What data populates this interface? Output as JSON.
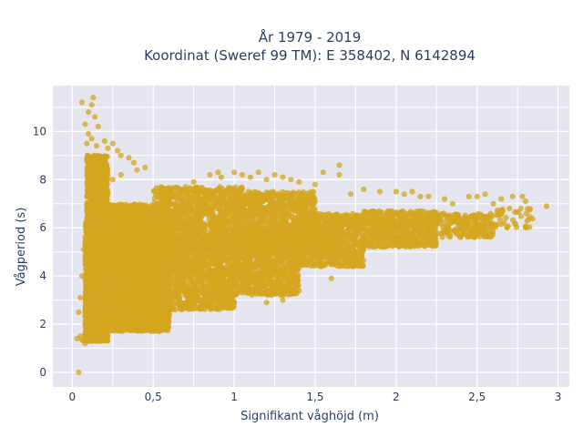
{
  "chart_data": {
    "type": "scatter",
    "title_line1": "År 1979 - 2019",
    "title_line2": "Koordinat (Sweref 99 TM): E 358402, N 6142894",
    "xlabel": "Signifikant våghöjd (m)",
    "ylabel": "Vågperiod (s)",
    "xlim": [
      -0.12,
      3.07
    ],
    "ylim": [
      -0.6,
      11.9
    ],
    "x_ticks": [
      0,
      0.5,
      1,
      1.5,
      2,
      2.5,
      3
    ],
    "x_tick_labels": [
      "0",
      "0,5",
      "1",
      "1,5",
      "2",
      "2,5",
      "3"
    ],
    "y_ticks": [
      0,
      2,
      4,
      6,
      8,
      10
    ],
    "y_tick_labels": [
      "0",
      "2",
      "4",
      "6",
      "8",
      "10"
    ],
    "grid": true,
    "marker_color": "#d4a51f",
    "background_color": "#e5e5f0",
    "series": [
      {
        "points": [
          [
            0.04,
            0.0
          ],
          [
            0.03,
            1.4
          ],
          [
            0.05,
            1.5
          ],
          [
            0.06,
            1.35
          ],
          [
            0.07,
            1.3
          ],
          [
            0.08,
            1.2
          ],
          [
            0.1,
            1.3
          ],
          [
            0.12,
            1.4
          ],
          [
            0.06,
            11.2
          ],
          [
            0.13,
            11.4
          ],
          [
            0.12,
            11.1
          ],
          [
            0.1,
            10.8
          ],
          [
            0.14,
            10.6
          ],
          [
            0.08,
            10.3
          ],
          [
            0.16,
            10.2
          ],
          [
            0.1,
            9.9
          ],
          [
            0.09,
            9.5
          ],
          [
            0.12,
            9.7
          ],
          [
            0.15,
            9.4
          ],
          [
            0.2,
            9.6
          ],
          [
            0.22,
            9.3
          ],
          [
            0.25,
            9.5
          ],
          [
            0.28,
            9.2
          ],
          [
            0.3,
            9.0
          ],
          [
            0.35,
            8.9
          ],
          [
            0.38,
            8.7
          ],
          [
            0.4,
            8.4
          ],
          [
            0.45,
            8.5
          ],
          [
            0.2,
            8.5
          ],
          [
            0.25,
            8.0
          ],
          [
            0.3,
            8.2
          ],
          [
            0.55,
            7.7
          ],
          [
            0.6,
            7.6
          ],
          [
            0.75,
            7.9
          ],
          [
            0.85,
            8.2
          ],
          [
            0.9,
            8.3
          ],
          [
            0.92,
            8.1
          ],
          [
            1.0,
            8.3
          ],
          [
            1.05,
            8.2
          ],
          [
            1.1,
            8.1
          ],
          [
            1.15,
            8.3
          ],
          [
            1.2,
            8.0
          ],
          [
            1.25,
            8.2
          ],
          [
            1.3,
            8.1
          ],
          [
            1.35,
            8.0
          ],
          [
            1.4,
            7.9
          ],
          [
            1.5,
            7.8
          ],
          [
            1.55,
            8.3
          ],
          [
            1.65,
            8.6
          ],
          [
            1.65,
            8.2
          ],
          [
            1.72,
            7.4
          ],
          [
            1.8,
            7.6
          ],
          [
            1.9,
            7.5
          ],
          [
            2.0,
            7.5
          ],
          [
            2.05,
            7.4
          ],
          [
            2.1,
            7.5
          ],
          [
            2.15,
            7.3
          ],
          [
            2.2,
            7.3
          ],
          [
            2.3,
            7.2
          ],
          [
            2.35,
            7.0
          ],
          [
            2.45,
            7.3
          ],
          [
            2.5,
            7.3
          ],
          [
            2.55,
            7.4
          ],
          [
            2.6,
            7.0
          ],
          [
            2.65,
            7.2
          ],
          [
            2.7,
            6.8
          ],
          [
            2.72,
            7.3
          ],
          [
            2.78,
            7.3
          ],
          [
            2.8,
            7.1
          ],
          [
            2.93,
            6.9
          ],
          [
            1.45,
            4.6
          ],
          [
            1.5,
            4.8
          ],
          [
            1.6,
            5.0
          ],
          [
            1.7,
            5.2
          ],
          [
            1.8,
            5.4
          ],
          [
            1.9,
            5.5
          ],
          [
            2.0,
            5.6
          ],
          [
            2.1,
            5.7
          ],
          [
            2.2,
            5.8
          ],
          [
            2.3,
            5.9
          ],
          [
            2.4,
            6.0
          ],
          [
            2.5,
            6.1
          ],
          [
            2.6,
            6.1
          ],
          [
            1.3,
            3.0
          ],
          [
            1.4,
            3.4
          ],
          [
            1.6,
            3.9
          ],
          [
            1.2,
            2.9
          ],
          [
            1.0,
            2.9
          ],
          [
            0.8,
            2.7
          ],
          [
            0.6,
            2.4
          ],
          [
            0.4,
            2.0
          ],
          [
            0.3,
            1.9
          ],
          [
            0.2,
            1.7
          ],
          [
            0.15,
            1.6
          ],
          [
            0.05,
            3.1
          ],
          [
            0.06,
            4.0
          ],
          [
            0.07,
            5.1
          ],
          [
            0.08,
            5.6
          ],
          [
            0.04,
            2.5
          ]
        ]
      },
      {
        "clusters": [
          {
            "x": [
              0.08,
              0.22
            ],
            "y": [
              1.3,
              3.5
            ],
            "count": 1200
          },
          {
            "x": [
              0.08,
              0.25
            ],
            "y": [
              3.0,
              6.5
            ],
            "count": 1200
          },
          {
            "x": [
              0.09,
              0.22
            ],
            "y": [
              6.0,
              9.0
            ],
            "count": 700
          },
          {
            "x": [
              0.2,
              0.6
            ],
            "y": [
              1.7,
              4.5
            ],
            "count": 1400
          },
          {
            "x": [
              0.2,
              0.6
            ],
            "y": [
              4.0,
              7.0
            ],
            "count": 1400
          },
          {
            "x": [
              0.5,
              1.0
            ],
            "y": [
              2.6,
              5.5
            ],
            "count": 1200
          },
          {
            "x": [
              0.5,
              1.05
            ],
            "y": [
              5.0,
              7.7
            ],
            "count": 1200
          },
          {
            "x": [
              1.0,
              1.4
            ],
            "y": [
              3.2,
              6.0
            ],
            "count": 900
          },
          {
            "x": [
              1.0,
              1.5
            ],
            "y": [
              5.0,
              7.5
            ],
            "count": 900
          },
          {
            "x": [
              1.4,
              1.8
            ],
            "y": [
              4.4,
              6.6
            ],
            "count": 800
          },
          {
            "x": [
              1.8,
              2.25
            ],
            "y": [
              5.2,
              6.7
            ],
            "count": 600
          },
          {
            "x": [
              2.2,
              2.6
            ],
            "y": [
              5.6,
              6.6
            ],
            "count": 250
          },
          {
            "x": [
              2.6,
              2.85
            ],
            "y": [
              6.0,
              6.8
            ],
            "count": 40
          }
        ]
      }
    ]
  }
}
